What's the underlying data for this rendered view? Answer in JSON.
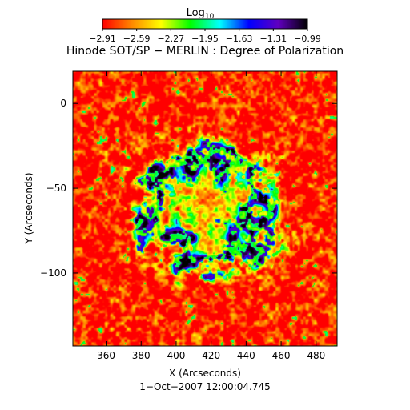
{
  "chart_data": {
    "type": "heatmap",
    "title": "Hinode SOT/SP − MERLIN : Degree of Polarization",
    "xlabel": "X (Arcseconds)",
    "ylabel": "Y (Arcseconds)",
    "footer": "1−Oct−2007 12:00:04.745",
    "xlim": [
      341,
      492
    ],
    "ylim": [
      -143,
      19
    ],
    "x_ticks": [
      360,
      380,
      400,
      420,
      440,
      460,
      480
    ],
    "y_ticks": [
      0,
      -50,
      -100
    ],
    "colorbar": {
      "title_main": "Log",
      "title_sub": "10",
      "range": [
        -2.91,
        -0.99
      ],
      "tick_labels": [
        "−2.91",
        "−2.59",
        "−2.27",
        "−1.95",
        "−1.63",
        "−1.31",
        "−0.99"
      ],
      "colors": [
        "#ff0000",
        "#ff8800",
        "#ffff00",
        "#00ff00",
        "#00ffff",
        "#0000ff",
        "#6000c0",
        "#000000"
      ]
    },
    "map": {
      "background_level": -2.85,
      "active_region": {
        "center": [
          418,
          -62
        ],
        "core_level": -2.3,
        "ring_level": -1.2
      }
    }
  }
}
